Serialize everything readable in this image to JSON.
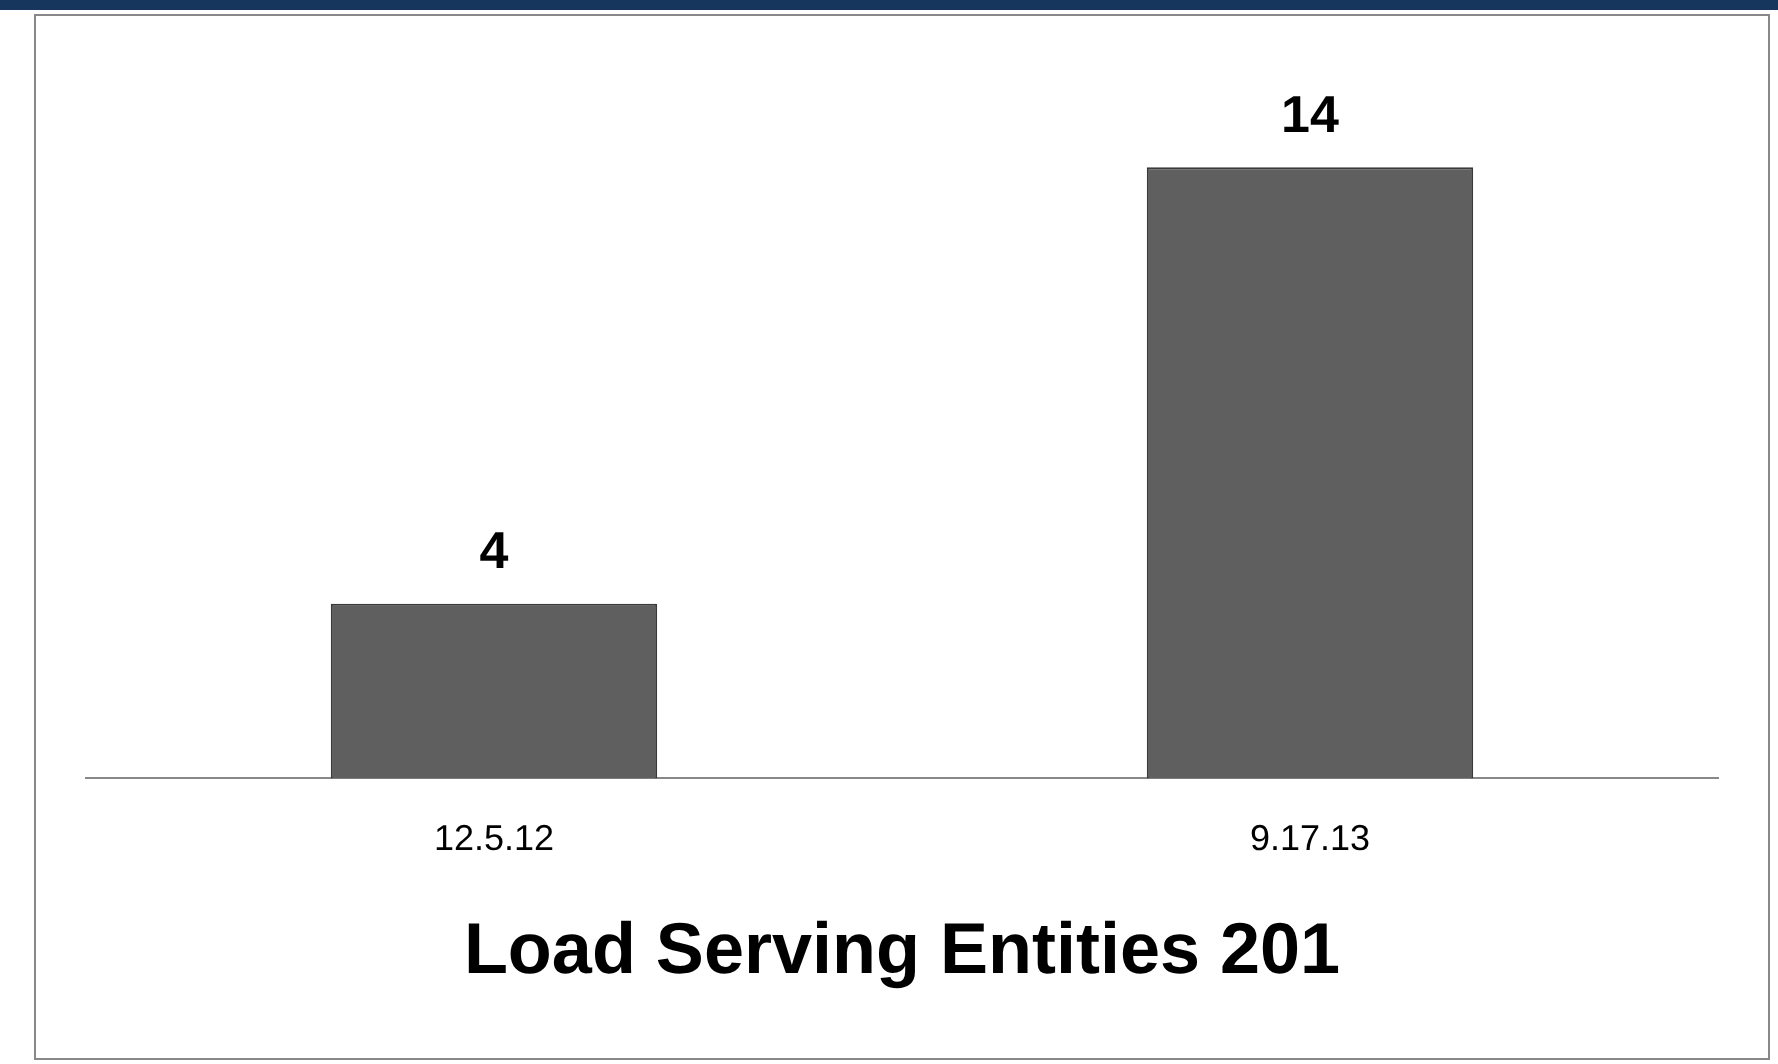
{
  "chart_data": {
    "type": "bar",
    "xlabel": "Load Serving Entities 201",
    "categories": [
      "12.5.12",
      "9.17.13"
    ],
    "values": [
      4,
      14
    ],
    "color": "#5f5f5f",
    "data_labels": true,
    "grid": false,
    "legend": false
  }
}
